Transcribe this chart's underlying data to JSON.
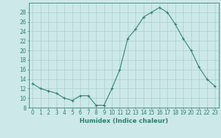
{
  "x": [
    0,
    1,
    2,
    3,
    4,
    5,
    6,
    7,
    8,
    9,
    10,
    11,
    12,
    13,
    14,
    15,
    16,
    17,
    18,
    19,
    20,
    21,
    22,
    23
  ],
  "y": [
    13,
    12,
    11.5,
    11,
    10,
    9.5,
    10.5,
    10.5,
    8.5,
    8.5,
    12,
    16,
    22.5,
    24.5,
    27,
    28,
    29,
    28,
    25.5,
    22.5,
    20,
    16.5,
    14,
    12.5
  ],
  "line_color": "#2e7d6e",
  "marker": "+",
  "marker_size": 3,
  "marker_linewidth": 0.8,
  "line_width": 0.8,
  "background_color": "#cce8e8",
  "grid_color": "#aacccc",
  "xlabel": "Humidex (Indice chaleur)",
  "xlim": [
    -0.5,
    23.5
  ],
  "ylim": [
    8,
    30
  ],
  "yticks": [
    8,
    10,
    12,
    14,
    16,
    18,
    20,
    22,
    24,
    26,
    28
  ],
  "xticks": [
    0,
    1,
    2,
    3,
    4,
    5,
    6,
    7,
    8,
    9,
    10,
    11,
    12,
    13,
    14,
    15,
    16,
    17,
    18,
    19,
    20,
    21,
    22,
    23
  ],
  "tick_color": "#2e7d6e",
  "label_fontsize": 5.5,
  "xlabel_fontsize": 6.5,
  "figsize": [
    3.2,
    2.0
  ],
  "dpi": 100
}
